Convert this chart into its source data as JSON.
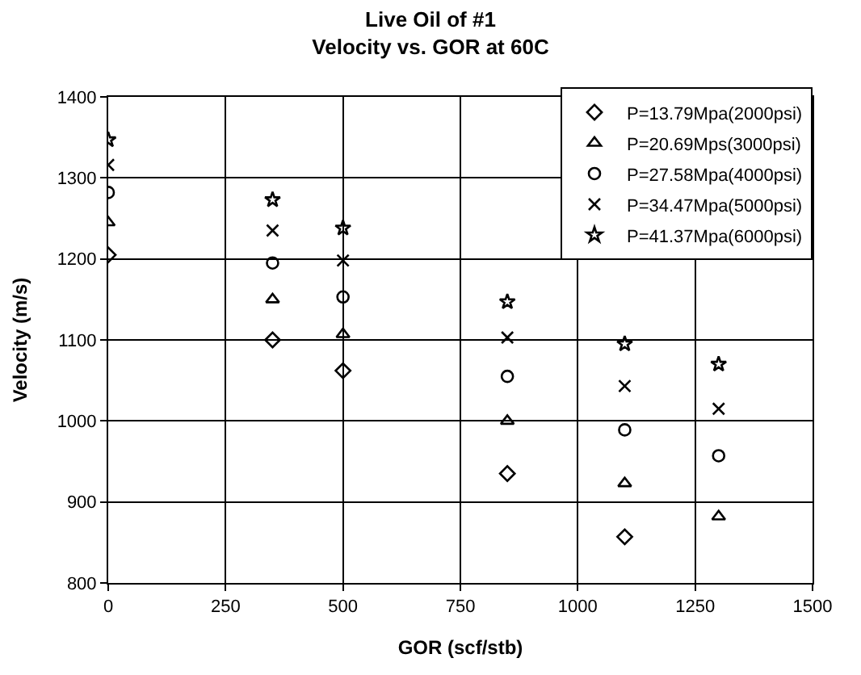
{
  "chart_data": {
    "type": "scatter",
    "title": "Live Oil of #1\nVelocity vs. GOR at 60C",
    "xlabel": "GOR (scf/stb)",
    "ylabel": "Velocity (m/s)",
    "x": [
      0,
      350,
      500,
      850,
      1100,
      1300
    ],
    "series": [
      {
        "name": "P=13.79Mpa(2000psi)",
        "color": "#000000",
        "marker": "diamond",
        "values": [
          1205,
          1100,
          1062,
          935,
          857,
          null
        ]
      },
      {
        "name": "P=20.69Mps(3000psi)",
        "color": "#000000",
        "marker": "triangle",
        "values": [
          1245,
          1150,
          1107,
          1000,
          923,
          882
        ]
      },
      {
        "name": "P=27.58Mpa(4000psi)",
        "color": "#000000",
        "marker": "circle",
        "values": [
          1282,
          1195,
          1153,
          1055,
          989,
          957
        ]
      },
      {
        "name": "P=34.47Mpa(5000psi)",
        "color": "#000000",
        "marker": "cross",
        "values": [
          1316,
          1235,
          1198,
          1103,
          1043,
          1015
        ]
      },
      {
        "name": "P=41.37Mpa(6000psi)",
        "color": "#000000",
        "marker": "star",
        "values": [
          1347,
          1273,
          1238,
          1147,
          1095,
          1070
        ]
      }
    ],
    "xlim": [
      0,
      1500
    ],
    "xticks": [
      0,
      250,
      500,
      750,
      1000,
      1250,
      1500
    ],
    "ylim": [
      800,
      1400
    ],
    "yticks": [
      800,
      900,
      1000,
      1100,
      1200,
      1300,
      1400
    ],
    "grid": true,
    "legend": "top right"
  }
}
